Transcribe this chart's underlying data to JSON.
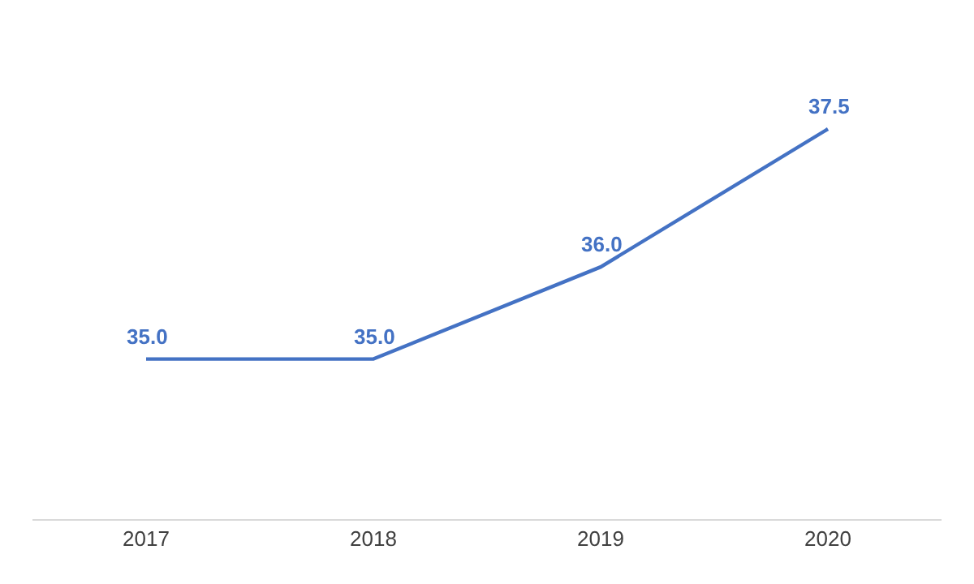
{
  "chart_data": {
    "type": "line",
    "categories": [
      "2017",
      "2018",
      "2019",
      "2020"
    ],
    "marker": "none",
    "series": [
      {
        "color": "#4472c4",
        "values": [
          35.0,
          35.0,
          36.0,
          37.5
        ],
        "value_labels": [
          "35.0",
          "35.0",
          "36.0",
          "37.5"
        ]
      }
    ]
  }
}
